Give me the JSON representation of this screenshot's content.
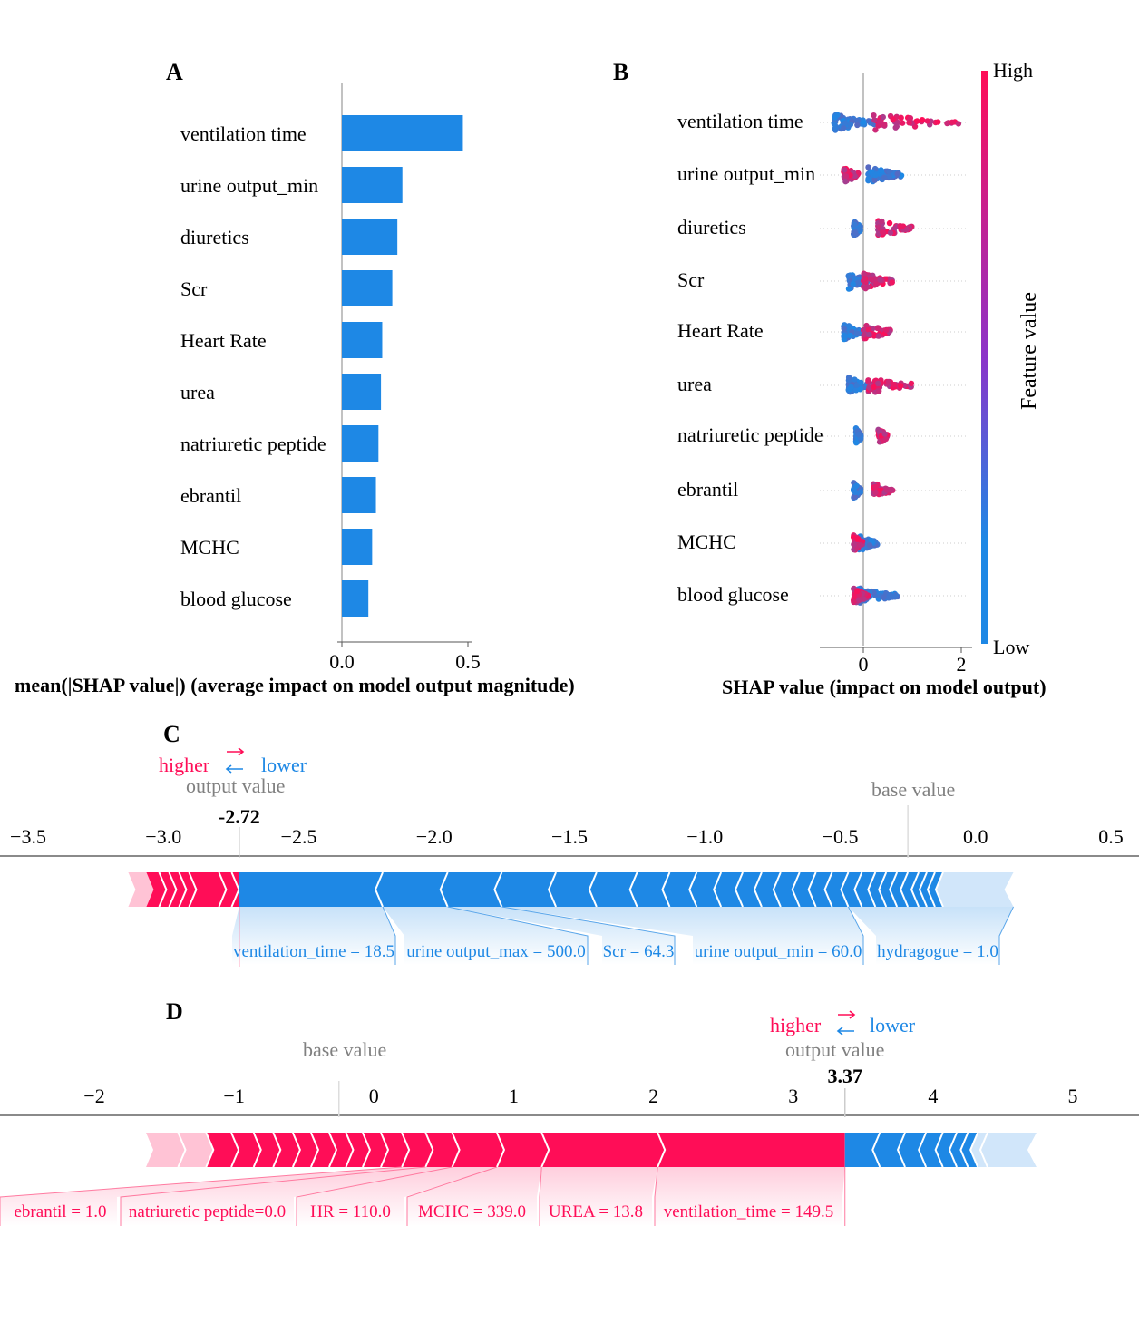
{
  "colors": {
    "bar": "#1e88e5",
    "red": "#ff0d57",
    "blue": "#1e88e5",
    "gray": "#808080",
    "lightred": "#ffc3d5",
    "lightblue": "#d1e6fa"
  },
  "chart_data": [
    {
      "panel": "A",
      "type": "bar",
      "orientation": "horizontal",
      "categories": [
        "ventilation time",
        "urine output_min",
        "diuretics",
        "Scr",
        "Heart Rate",
        "urea",
        "natriuretic peptide",
        "ebrantil",
        "MCHC",
        "blood glucose"
      ],
      "values": [
        0.48,
        0.24,
        0.22,
        0.2,
        0.16,
        0.155,
        0.145,
        0.135,
        0.12,
        0.105
      ],
      "xticks": [
        "0.0",
        "0.5"
      ],
      "xlim": [
        0,
        0.5
      ],
      "xlabel": "mean(|SHAP value|) (average impact on model output magnitude)"
    },
    {
      "panel": "B",
      "type": "scatter",
      "subtype": "beeswarm",
      "features": [
        "ventilation time",
        "urine output_min",
        "diuretics",
        "Scr",
        "Heart Rate",
        "urea",
        "natriuretic peptide",
        "ebrantil",
        "MCHC",
        "blood glucose"
      ],
      "summary": [
        {
          "low_range": [
            -0.6,
            0.3
          ],
          "high_range": [
            0.2,
            2.0
          ]
        },
        {
          "low_range": [
            0.1,
            0.8
          ],
          "high_range": [
            -0.4,
            -0.1
          ]
        },
        {
          "low_range": [
            -0.2,
            -0.05
          ],
          "high_range": [
            0.3,
            1.0
          ]
        },
        {
          "low_range": [
            -0.3,
            0.1
          ],
          "high_range": [
            0.0,
            0.6
          ]
        },
        {
          "low_range": [
            -0.4,
            0.0
          ],
          "high_range": [
            0.0,
            0.6
          ]
        },
        {
          "low_range": [
            -0.3,
            0.1
          ],
          "high_range": [
            0.1,
            1.0
          ]
        },
        {
          "low_range": [
            -0.15,
            -0.05
          ],
          "high_range": [
            0.3,
            0.5
          ]
        },
        {
          "low_range": [
            -0.2,
            -0.05
          ],
          "high_range": [
            0.2,
            0.6
          ]
        },
        {
          "low_range": [
            -0.1,
            0.3
          ],
          "high_range": [
            -0.2,
            0.0
          ]
        },
        {
          "low_range": [
            -0.1,
            0.7
          ],
          "high_range": [
            -0.2,
            0.1
          ]
        }
      ],
      "xticks": [
        "0",
        "2"
      ],
      "xlim": [
        -0.9,
        2.25
      ],
      "xlabel": "SHAP value (impact on model output)",
      "colorbar": {
        "label": "Feature value",
        "high": "High",
        "low": "Low"
      }
    },
    {
      "panel": "C",
      "type": "force",
      "xticks": [
        "−3.5",
        "−3.0",
        "−2.5",
        "−2.0",
        "−1.5",
        "−1.0",
        "−0.5",
        "0.0",
        "0.5"
      ],
      "xlim": [
        -3.55,
        0.55
      ],
      "output_value": -2.72,
      "output_label": "-2.72",
      "base_value": -0.25,
      "red_segments": [
        -3.13,
        -2.72
      ],
      "blue_segments": [
        -2.72,
        -2.19,
        -1.95,
        -1.75,
        -1.55,
        -1.4,
        -1.25,
        -1.13,
        -1.03,
        -0.94,
        -0.86,
        -0.79,
        -0.72,
        -0.65,
        -0.59,
        -0.53,
        -0.47,
        -0.42,
        -0.37,
        -0.33,
        -0.29,
        -0.25,
        -0.21,
        -0.18,
        -0.15,
        -0.12,
        0.14
      ],
      "labels": [
        {
          "text": "ventilation_time = 18.5",
          "value_from": -2.72,
          "value_to": -2.19
        },
        {
          "text": "urine output_max = 500.0",
          "value_from": -2.19,
          "value_to": -1.95
        },
        {
          "text": "Scr = 64.3",
          "value_from": -1.95,
          "value_to": -1.75
        },
        {
          "text": "urine output_min = 60.0",
          "value_from": -1.75,
          "value_to": -0.47
        },
        {
          "text": "hydragogue = 1.0",
          "value_from": -0.47,
          "value_to": 0.14
        }
      ],
      "legend": {
        "higher": "higher",
        "lower": "lower",
        "output": "output value",
        "base": "base value"
      }
    },
    {
      "panel": "D",
      "type": "force",
      "xticks": [
        "−2",
        "−1",
        "0",
        "1",
        "2",
        "3",
        "4",
        "5"
      ],
      "xlim": [
        -2.7,
        5.4
      ],
      "output_value": 3.37,
      "output_label": "3.37",
      "base_value": -0.25,
      "red_segments": [
        -1.63,
        -1.4,
        -1.2,
        -1.02,
        -0.86,
        -0.72,
        -0.58,
        -0.45,
        -0.32,
        -0.2,
        -0.08,
        0.05,
        0.2,
        0.37,
        0.56,
        0.88,
        1.2,
        2.03,
        3.37
      ],
      "blue_segments": [
        3.37,
        3.62,
        3.8,
        3.95,
        4.07,
        4.17,
        4.25,
        4.32,
        4.39,
        4.74
      ],
      "labels": [
        {
          "text": "ebrantil = 1.0",
          "value_from": 0.2,
          "value_to": 0.37
        },
        {
          "text": "natriuretic peptide=0.0",
          "value_from": 0.37,
          "value_to": 0.56
        },
        {
          "text": "HR = 110.0",
          "value_from": 0.56,
          "value_to": 0.88
        },
        {
          "text": "MCHC = 339.0",
          "value_from": 0.88,
          "value_to": 1.2
        },
        {
          "text": "UREA = 13.8",
          "value_from": 1.2,
          "value_to": 2.03
        },
        {
          "text": "ventilation_time = 149.5",
          "value_from": 2.03,
          "value_to": 3.37
        }
      ],
      "legend": {
        "higher": "higher",
        "lower": "lower",
        "output": "output value",
        "base": "base value"
      }
    }
  ]
}
